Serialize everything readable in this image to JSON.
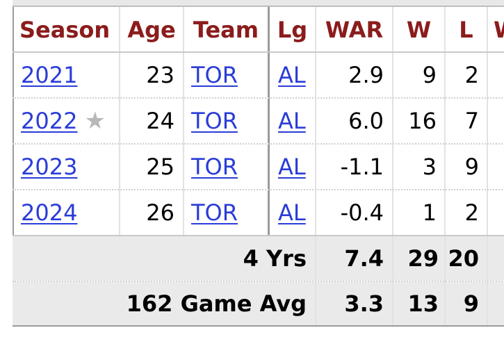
{
  "table": {
    "headers": {
      "season": "Season",
      "age": "Age",
      "team": "Team",
      "lg": "Lg",
      "war": "WAR",
      "w": "W",
      "l": "L",
      "next_cut": "W"
    },
    "rows": [
      {
        "season": "2021",
        "age": "23",
        "team": "TOR",
        "lg": "AL",
        "war": "2.9",
        "w": "9",
        "l": "2"
      },
      {
        "season": "2022",
        "star": "★",
        "age": "24",
        "team": "TOR",
        "lg": "AL",
        "war": "6.0",
        "w": "16",
        "l": "7"
      },
      {
        "season": "2023",
        "age": "25",
        "team": "TOR",
        "lg": "AL",
        "war": "-1.1",
        "w": "3",
        "l": "9"
      },
      {
        "season": "2024",
        "age": "26",
        "team": "TOR",
        "lg": "AL",
        "war": "-0.4",
        "w": "1",
        "l": "2"
      }
    ],
    "totals": {
      "label": "4 Yrs",
      "war": "7.4",
      "w": "29",
      "l": "20"
    },
    "avg": {
      "label": "162 Game Avg",
      "war": "3.3",
      "w": "13",
      "l": "9"
    }
  },
  "colors": {
    "header_text": "#8b1c1c",
    "link": "#2a3cd8",
    "footer_bg": "#eaeaea"
  }
}
